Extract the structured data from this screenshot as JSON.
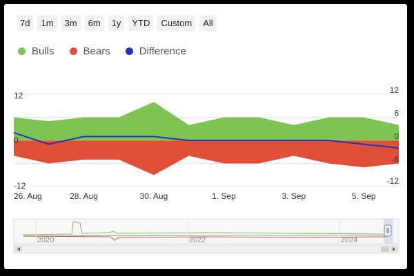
{
  "range_buttons": [
    "7d",
    "1m",
    "3m",
    "6m",
    "1y",
    "YTD",
    "Custom",
    "All"
  ],
  "colors": {
    "bulls": "#7dc452",
    "bears": "#e05038",
    "difference": "#2233bb"
  },
  "chart_data": {
    "type": "area",
    "x": [
      "26 Aug",
      "27 Aug",
      "28 Aug",
      "29 Aug",
      "30 Aug",
      "31 Aug",
      "1 Sep",
      "2 Sep",
      "3 Sep",
      "4 Sep",
      "5 Sep",
      "6 Sep"
    ],
    "x_tick_labels": [
      "26. Aug",
      "28. Aug",
      "30. Aug",
      "1. Sep",
      "3. Sep",
      "5. Sep"
    ],
    "series": [
      {
        "name": "Bulls",
        "type": "area",
        "values": [
          6,
          5,
          6,
          6,
          10,
          4,
          6,
          6,
          4,
          6,
          6,
          4
        ]
      },
      {
        "name": "Bears",
        "type": "area",
        "values": [
          -4,
          -6,
          -5,
          -5,
          -9,
          -4,
          -6,
          -6,
          -4,
          -6,
          -7,
          -6
        ]
      },
      {
        "name": "Difference",
        "type": "line",
        "values": [
          2,
          -1,
          1,
          1,
          1,
          0,
          0,
          0,
          0,
          0,
          -1,
          -2
        ]
      }
    ],
    "left_axis": {
      "ticks": [
        "12",
        "0",
        "-12"
      ],
      "ylim": [
        -12,
        12
      ]
    },
    "right_axis": {
      "ticks": [
        "12",
        "6",
        "0",
        "-6",
        "-12"
      ],
      "ylim": [
        -12,
        12
      ]
    },
    "grid": true,
    "legend_position": "top-left",
    "navigator": {
      "tick_labels": [
        "2020",
        "2022",
        "2024"
      ]
    }
  }
}
